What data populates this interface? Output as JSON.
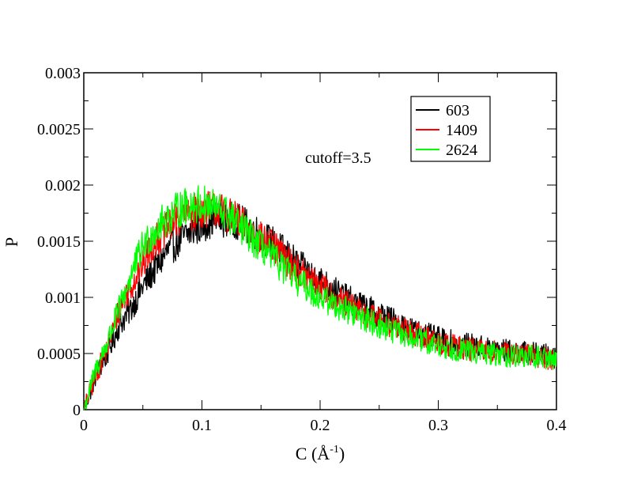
{
  "chart_data": {
    "type": "line",
    "xlabel": "C (Å⁻¹)",
    "xlabel_main": "C (Å",
    "xlabel_sup": "-1",
    "xlabel_close": ")",
    "ylabel": "P",
    "xlim": [
      0,
      0.4
    ],
    "ylim": [
      0,
      0.003
    ],
    "x_ticks": [
      "0",
      "0.1",
      "0.2",
      "0.3",
      "0.4"
    ],
    "y_ticks": [
      "0",
      "0.0005",
      "0.001",
      "0.0015",
      "0.002",
      "0.0025",
      "0.003"
    ],
    "x_tick_values": [
      0,
      0.1,
      0.2,
      0.3,
      0.4
    ],
    "y_tick_values": [
      0,
      0.0005,
      0.001,
      0.0015,
      0.002,
      0.0025,
      0.003
    ],
    "grid": false,
    "legend_position": "top-right",
    "annotation": "cutoff=3.5",
    "series": [
      {
        "name": "603",
        "color": "#000000",
        "x": [
          0,
          0.01,
          0.02,
          0.03,
          0.04,
          0.05,
          0.06,
          0.07,
          0.08,
          0.09,
          0.1,
          0.11,
          0.12,
          0.13,
          0.14,
          0.15,
          0.16,
          0.17,
          0.18,
          0.19,
          0.2,
          0.22,
          0.24,
          0.26,
          0.28,
          0.3,
          0.32,
          0.34,
          0.36,
          0.38,
          0.4
        ],
        "y": [
          0,
          0.0003,
          0.0005,
          0.00075,
          0.0009,
          0.0011,
          0.00125,
          0.0014,
          0.0015,
          0.00158,
          0.00165,
          0.0017,
          0.0017,
          0.00168,
          0.00162,
          0.00155,
          0.00148,
          0.0014,
          0.0013,
          0.00122,
          0.00115,
          0.001,
          0.0009,
          0.0008,
          0.0007,
          0.00063,
          0.00058,
          0.00055,
          0.00052,
          0.0005,
          0.00047
        ]
      },
      {
        "name": "1409",
        "color": "#ff0000",
        "x": [
          0,
          0.01,
          0.02,
          0.03,
          0.04,
          0.05,
          0.06,
          0.07,
          0.08,
          0.09,
          0.1,
          0.11,
          0.12,
          0.13,
          0.14,
          0.15,
          0.16,
          0.17,
          0.18,
          0.19,
          0.2,
          0.22,
          0.24,
          0.26,
          0.28,
          0.3,
          0.32,
          0.34,
          0.36,
          0.38,
          0.4
        ],
        "y": [
          0,
          0.0003,
          0.00055,
          0.0009,
          0.0011,
          0.0013,
          0.0015,
          0.0016,
          0.0017,
          0.00175,
          0.00178,
          0.0018,
          0.00175,
          0.00168,
          0.0016,
          0.00152,
          0.00145,
          0.00135,
          0.00125,
          0.00117,
          0.0011,
          0.00095,
          0.00085,
          0.00075,
          0.00068,
          0.0006,
          0.00055,
          0.00052,
          0.0005,
          0.00048,
          0.00045
        ]
      },
      {
        "name": "2624",
        "color": "#00ff00",
        "x": [
          0,
          0.01,
          0.02,
          0.03,
          0.04,
          0.05,
          0.06,
          0.07,
          0.08,
          0.09,
          0.1,
          0.11,
          0.12,
          0.13,
          0.14,
          0.15,
          0.16,
          0.17,
          0.18,
          0.19,
          0.2,
          0.22,
          0.24,
          0.26,
          0.28,
          0.3,
          0.32,
          0.34,
          0.36,
          0.38,
          0.4
        ],
        "y": [
          0,
          0.00035,
          0.0006,
          0.0009,
          0.0012,
          0.00145,
          0.0016,
          0.0017,
          0.00178,
          0.00183,
          0.00183,
          0.0018,
          0.00175,
          0.00165,
          0.00155,
          0.00145,
          0.00135,
          0.00125,
          0.00115,
          0.00108,
          0.001,
          0.0009,
          0.0008,
          0.0007,
          0.00063,
          0.00057,
          0.00053,
          0.0005,
          0.00048,
          0.00047,
          0.00045
        ]
      }
    ]
  }
}
